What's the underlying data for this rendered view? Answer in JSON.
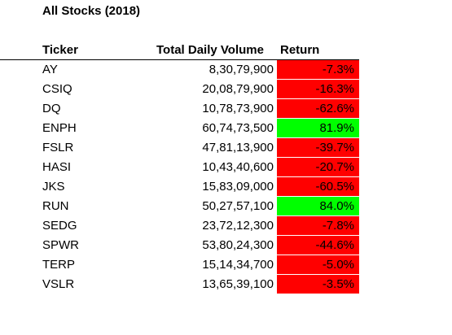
{
  "title": "All Stocks (2018)",
  "headers": {
    "ticker": "Ticker",
    "volume": "Total Daily Volume",
    "return": "Return"
  },
  "colors": {
    "negative": "#ff0000",
    "positive": "#00ff00"
  },
  "rows": [
    {
      "ticker": "AY",
      "volume": "8,30,79,900",
      "return": "-7.3%",
      "return_value": -7.3
    },
    {
      "ticker": "CSIQ",
      "volume": "20,08,79,900",
      "return": "-16.3%",
      "return_value": -16.3
    },
    {
      "ticker": "DQ",
      "volume": "10,78,73,900",
      "return": "-62.6%",
      "return_value": -62.6
    },
    {
      "ticker": "ENPH",
      "volume": "60,74,73,500",
      "return": "81.9%",
      "return_value": 81.9
    },
    {
      "ticker": "FSLR",
      "volume": "47,81,13,900",
      "return": "-39.7%",
      "return_value": -39.7
    },
    {
      "ticker": "HASI",
      "volume": "10,43,40,600",
      "return": "-20.7%",
      "return_value": -20.7
    },
    {
      "ticker": "JKS",
      "volume": "15,83,09,000",
      "return": "-60.5%",
      "return_value": -60.5
    },
    {
      "ticker": "RUN",
      "volume": "50,27,57,100",
      "return": "84.0%",
      "return_value": 84.0
    },
    {
      "ticker": "SEDG",
      "volume": "23,72,12,300",
      "return": "-7.8%",
      "return_value": -7.8
    },
    {
      "ticker": "SPWR",
      "volume": "53,80,24,300",
      "return": "-44.6%",
      "return_value": -44.6
    },
    {
      "ticker": "TERP",
      "volume": "15,14,34,700",
      "return": "-5.0%",
      "return_value": -5.0
    },
    {
      "ticker": "VSLR",
      "volume": "13,65,39,100",
      "return": "-3.5%",
      "return_value": -3.5
    }
  ]
}
